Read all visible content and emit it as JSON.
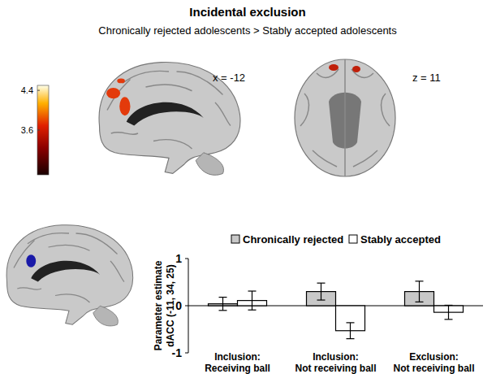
{
  "chart_data": {
    "type": "bar",
    "title": "Incidental exclusion",
    "subtitle": "Chronically rejected adolescents > Stably accepted adolescents",
    "annotations": [
      "x = -12",
      "z = 11"
    ],
    "colorbar": {
      "range": [
        2.7,
        4.5
      ],
      "ticks": [
        3.6,
        4.4
      ]
    },
    "categories": [
      "Inclusion: Receiving ball",
      "Inclusion: Not receiving ball",
      "Exclusion: Not receiving ball"
    ],
    "series": [
      {
        "name": "Chronically rejected",
        "color": "#c8c8c8",
        "values": [
          0.04,
          0.3,
          0.3
        ],
        "errors": [
          0.14,
          0.18,
          0.22
        ]
      },
      {
        "name": "Stably accepted",
        "color": "#ffffff",
        "values": [
          0.11,
          -0.53,
          -0.14
        ],
        "errors": [
          0.2,
          0.17,
          0.15
        ]
      }
    ],
    "y_label": "Parameter estimate\ndACC (-11, 34, 25)",
    "ylim": [
      -1,
      1
    ],
    "yticks": [
      -1,
      0,
      1
    ],
    "legend": "top",
    "grid": false
  }
}
